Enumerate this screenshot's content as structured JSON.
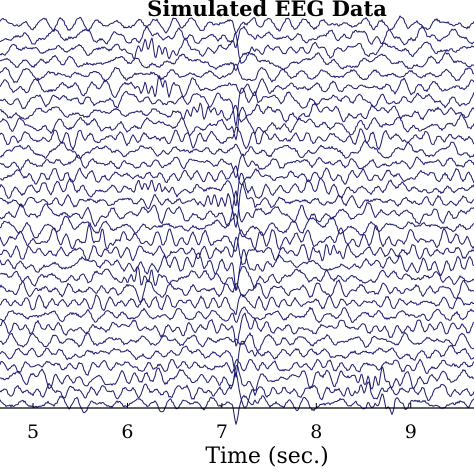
{
  "chart_data": {
    "type": "line",
    "title": "Simulated EEG Data",
    "xlabel": "Time (sec.)",
    "ylabel": "",
    "xlim": [
      4.65,
      9.67
    ],
    "xticks": [
      5,
      6,
      7,
      8,
      9
    ],
    "channel_count": 31,
    "grid": false,
    "legend": "none",
    "series_color": "#1a1a6e",
    "background_color": "#ffffff",
    "event_times": [
      7.15,
      7.35
    ]
  }
}
